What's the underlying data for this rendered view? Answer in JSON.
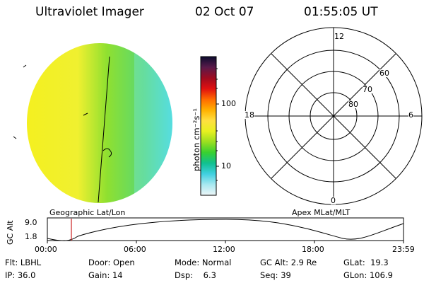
{
  "header": {
    "instrument": "Ultraviolet Imager",
    "date": "02 Oct 07",
    "time": "01:55:05 UT"
  },
  "colorbar": {
    "label": "photon cm⁻²s⁻¹",
    "ticks": [
      "100",
      "10"
    ],
    "colors": [
      "#0b0b2e",
      "#5a1a4a",
      "#9e0b20",
      "#e01010",
      "#ff6a00",
      "#ffb000",
      "#ffe040",
      "#e8f020",
      "#9adf20",
      "#38d030",
      "#10c090",
      "#40d0e0",
      "#a8e8f0",
      "#eef6f8"
    ]
  },
  "earth_image": {
    "left_color": "#f4f020",
    "mid_color": "#8fe030",
    "right_color": "#40d8d8"
  },
  "polar_plot": {
    "lat_labels": [
      "60",
      "70",
      "80"
    ],
    "mlt_labels": {
      "top": "12",
      "left": "18",
      "right": "6",
      "bottom": "0"
    }
  },
  "projection_labels": {
    "left": "Geographic Lat/Lon",
    "right": "Apex MLat/MLT"
  },
  "altitude_plot": {
    "ylabel": "GC Alt",
    "ymax_label": "9.0",
    "ymin_label": "1.8",
    "x_ticks": [
      "00:00",
      "06:00",
      "12:00",
      "18:00",
      "23:59"
    ],
    "marker_color": "#cc2222"
  },
  "info": {
    "row1": [
      {
        "label": "Flt:",
        "value": "LBHL"
      },
      {
        "label": "Door:",
        "value": "Open"
      },
      {
        "label": "Mode:",
        "value": "Normal"
      },
      {
        "label": "GC Alt:",
        "value": "2.9 Re"
      },
      {
        "label": "GLat:",
        "value": "19.3"
      }
    ],
    "row2": [
      {
        "label": "IP:",
        "value": "36.0"
      },
      {
        "label": "Gain:",
        "value": "14"
      },
      {
        "label": "Dsp:",
        "value": "6.3"
      },
      {
        "label": "Seq:",
        "value": "39"
      },
      {
        "label": "GLon:",
        "value": "106.9"
      }
    ]
  }
}
